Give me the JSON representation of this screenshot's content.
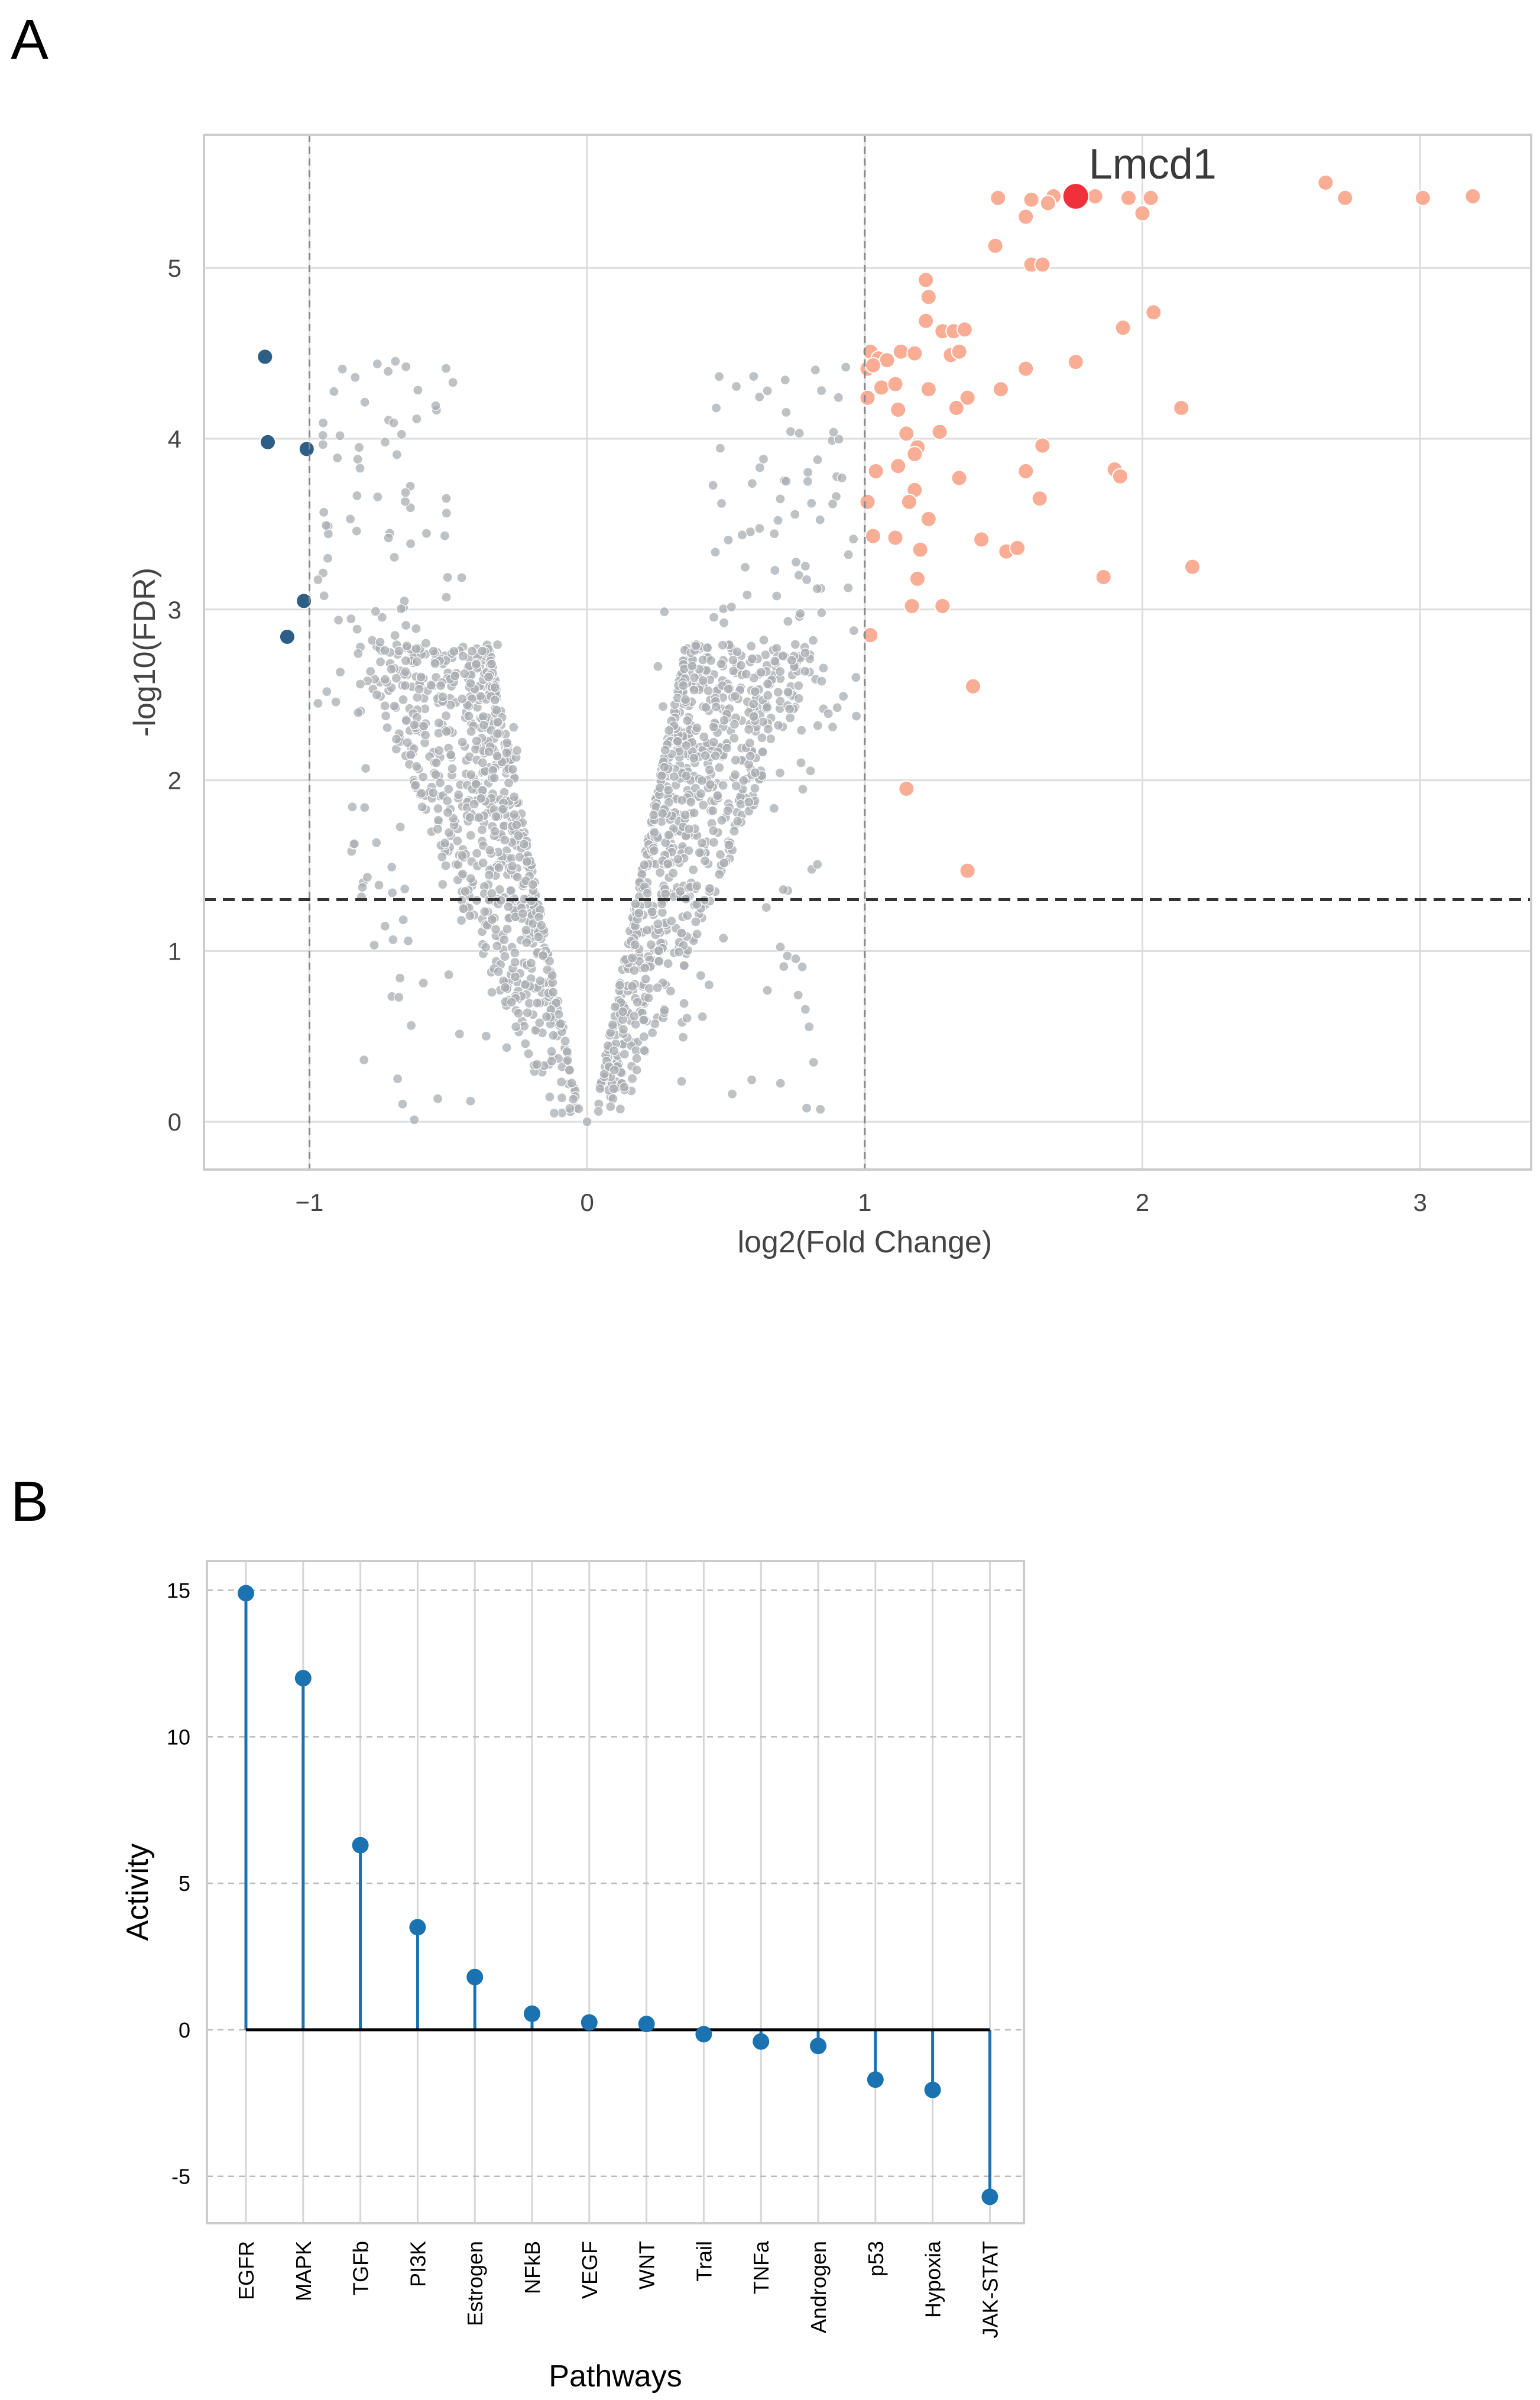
{
  "panels": {
    "a": {
      "letter": "A"
    },
    "b": {
      "letter": "B"
    }
  },
  "chart_data": [
    {
      "type": "scatter",
      "title": "",
      "xlabel": "log2(Fold Change)",
      "ylabel": "-log10(FDR)",
      "xlim": [
        -1.38,
        3.4
      ],
      "ylim": [
        -0.28,
        5.78
      ],
      "xticks": [
        -1,
        0,
        1,
        2,
        3
      ],
      "xtick_labels": [
        "−1",
        "0",
        "1",
        "2",
        "3"
      ],
      "yticks": [
        0,
        1,
        2,
        3,
        4,
        5
      ],
      "ytick_labels": [
        "0",
        "1",
        "2",
        "3",
        "4",
        "5"
      ],
      "thresholds": {
        "fc_lines": [
          -1,
          1
        ],
        "fdr_line": 1.301
      },
      "grid": true,
      "colors": {
        "nonsig": "#a9adb2",
        "up": "#f8ad94",
        "down": "#2d5f86",
        "highlight": "#f0303a",
        "threshold": "#333333"
      },
      "series": [
        {
          "name": "up",
          "points": [
            [
              1.48,
              5.41
            ],
            [
              1.6,
              5.4
            ],
            [
              1.68,
              5.42
            ],
            [
              1.83,
              5.42
            ],
            [
              1.95,
              5.41
            ],
            [
              2.03,
              5.41
            ],
            [
              2.66,
              5.5
            ],
            [
              2.73,
              5.41
            ],
            [
              3.01,
              5.41
            ],
            [
              3.19,
              5.42
            ],
            [
              1.58,
              5.3
            ],
            [
              1.66,
              5.38
            ],
            [
              2.0,
              5.32
            ],
            [
              1.47,
              5.13
            ],
            [
              1.6,
              5.02
            ],
            [
              1.64,
              5.02
            ],
            [
              1.22,
              4.93
            ],
            [
              1.23,
              4.83
            ],
            [
              1.22,
              4.69
            ],
            [
              1.28,
              4.63
            ],
            [
              1.32,
              4.63
            ],
            [
              1.36,
              4.64
            ],
            [
              1.02,
              4.51
            ],
            [
              1.05,
              4.47
            ],
            [
              1.08,
              4.46
            ],
            [
              1.13,
              4.51
            ],
            [
              1.18,
              4.5
            ],
            [
              1.31,
              4.49
            ],
            [
              1.34,
              4.51
            ],
            [
              1.01,
              4.41
            ],
            [
              1.03,
              4.43
            ],
            [
              1.58,
              4.41
            ],
            [
              1.76,
              4.45
            ],
            [
              1.93,
              4.65
            ],
            [
              2.04,
              4.74
            ],
            [
              1.01,
              4.24
            ],
            [
              1.06,
              4.3
            ],
            [
              1.11,
              4.32
            ],
            [
              1.23,
              4.29
            ],
            [
              1.37,
              4.24
            ],
            [
              1.49,
              4.29
            ],
            [
              1.12,
              4.17
            ],
            [
              1.33,
              4.18
            ],
            [
              2.14,
              4.18
            ],
            [
              1.15,
              4.03
            ],
            [
              1.27,
              4.04
            ],
            [
              1.19,
              3.95
            ],
            [
              1.64,
              3.96
            ],
            [
              1.18,
              3.91
            ],
            [
              1.12,
              3.84
            ],
            [
              1.04,
              3.81
            ],
            [
              1.58,
              3.81
            ],
            [
              1.9,
              3.82
            ],
            [
              1.92,
              3.78
            ],
            [
              1.34,
              3.77
            ],
            [
              1.18,
              3.7
            ],
            [
              1.16,
              3.63
            ],
            [
              1.63,
              3.65
            ],
            [
              1.01,
              3.63
            ],
            [
              1.23,
              3.53
            ],
            [
              1.03,
              3.43
            ],
            [
              1.11,
              3.42
            ],
            [
              1.42,
              3.41
            ],
            [
              1.2,
              3.35
            ],
            [
              1.51,
              3.34
            ],
            [
              1.55,
              3.36
            ],
            [
              2.18,
              3.25
            ],
            [
              1.86,
              3.19
            ],
            [
              1.19,
              3.18
            ],
            [
              1.17,
              3.02
            ],
            [
              1.28,
              3.02
            ],
            [
              1.02,
              2.85
            ],
            [
              1.39,
              2.55
            ],
            [
              1.15,
              1.95
            ],
            [
              1.37,
              1.47
            ]
          ]
        },
        {
          "name": "down",
          "points": [
            [
              -1.16,
              4.48
            ],
            [
              -1.15,
              3.98
            ],
            [
              -1.01,
              3.94
            ],
            [
              -1.02,
              3.05
            ],
            [
              -1.08,
              2.84
            ]
          ]
        },
        {
          "name": "highlight",
          "label": "Lmcd1",
          "points": [
            [
              1.76,
              5.42
            ]
          ]
        }
      ]
    },
    {
      "type": "lollipop",
      "title": "",
      "xlabel": "Pathways",
      "ylabel": "Activity",
      "ylim": [
        -6.6,
        16.0
      ],
      "yticks": [
        -5,
        0,
        5,
        10,
        15
      ],
      "ytick_labels": [
        "-5",
        "0",
        "5",
        "10",
        "15"
      ],
      "grid": true,
      "colors": {
        "stem": "#1a72b0",
        "baseline": "#000000"
      },
      "categories": [
        "EGFR",
        "MAPK",
        "TGFb",
        "PI3K",
        "Estrogen",
        "NFkB",
        "VEGF",
        "WNT",
        "Trail",
        "TNFa",
        "Androgen",
        "p53",
        "Hypoxia",
        "JAK-STAT"
      ],
      "values": [
        14.9,
        12.0,
        6.3,
        3.5,
        1.8,
        0.55,
        0.25,
        0.2,
        -0.15,
        -0.4,
        -0.55,
        -1.7,
        -2.05,
        -5.7
      ]
    }
  ]
}
